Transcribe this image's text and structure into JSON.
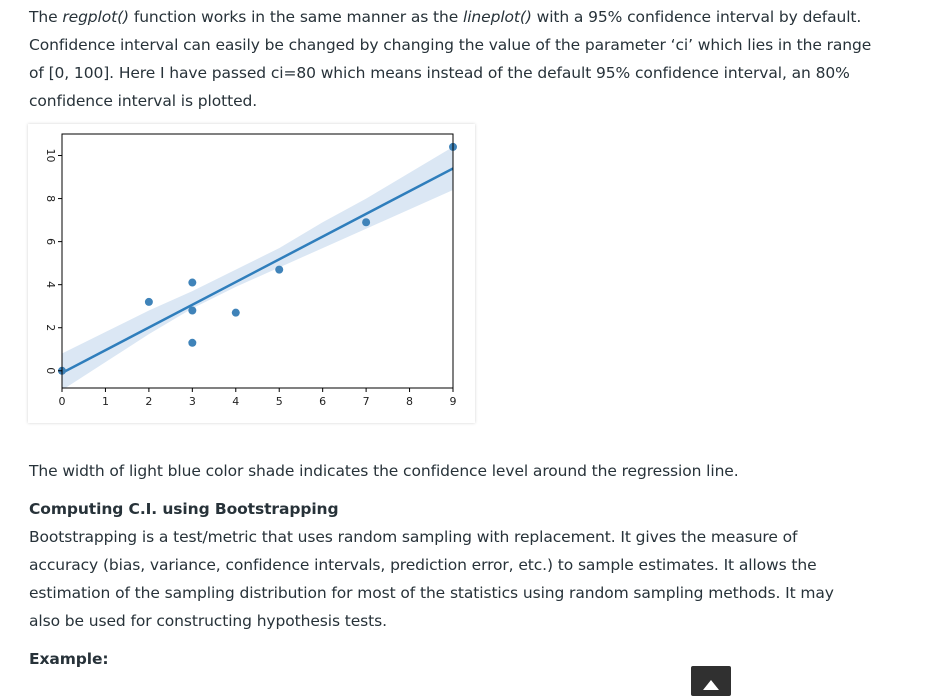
{
  "intro": {
    "t1": "The ",
    "fn1": "regplot()",
    "t2": " function works in the same manner as the ",
    "fn2": "lineplot()",
    "t3": " with a 95% confidence interval by default. Confidence interval can easily be changed by changing the value of the parameter ‘ci’ which lies in the range of [0, 100]. Here I have passed ci=80 which means instead of the default 95% confidence interval, an 80% confidence interval is plotted."
  },
  "caption": "The width of light blue color shade indicates the confidence level around the regression line.",
  "section_heading": "Computing C.I. using Bootstrapping",
  "bootstrap_paragraph": "Bootstrapping is a test/metric that uses random sampling with replacement. It gives the measure of accuracy (bias, variance, confidence intervals, prediction error, etc.) to sample estimates. It allows the estimation of the sampling distribution for most of the statistics using random sampling methods. It may also be used for constructing hypothesis tests.",
  "example_label": "Example:",
  "colors": {
    "point": "#3f83b9",
    "line": "#2f7ebc",
    "band": "#dbe7f4",
    "text": "#273239",
    "scroll_button": "#303030"
  },
  "icons": {
    "scroll_top": "arrow-up-icon"
  },
  "chart_data": {
    "type": "scatter",
    "title": "",
    "xlabel": "",
    "ylabel": "",
    "xlim": [
      0,
      9
    ],
    "ylim": [
      -0.8,
      11
    ],
    "xticks": [
      0,
      1,
      2,
      3,
      4,
      5,
      6,
      7,
      8,
      9
    ],
    "yticks": [
      0,
      2,
      4,
      6,
      8,
      10
    ],
    "points": [
      {
        "x": 0,
        "y": 0
      },
      {
        "x": 2,
        "y": 3.2
      },
      {
        "x": 3,
        "y": 4.1
      },
      {
        "x": 3,
        "y": 2.8
      },
      {
        "x": 3,
        "y": 1.3
      },
      {
        "x": 4,
        "y": 2.7
      },
      {
        "x": 5,
        "y": 4.7
      },
      {
        "x": 7,
        "y": 6.9
      },
      {
        "x": 9,
        "y": 10.4
      }
    ],
    "regression": {
      "x": [
        0,
        9
      ],
      "y": [
        -0.1,
        9.4
      ]
    },
    "ci_band": {
      "x": [
        0,
        1,
        2,
        3,
        4,
        5,
        6,
        7,
        8,
        9
      ],
      "lower": [
        -0.9,
        0.4,
        1.7,
        2.9,
        3.9,
        4.8,
        5.7,
        6.6,
        7.5,
        8.4
      ],
      "upper": [
        0.8,
        1.8,
        2.8,
        3.7,
        4.7,
        5.7,
        6.9,
        8.0,
        9.2,
        10.4
      ]
    },
    "grid": false,
    "ci": 80
  }
}
